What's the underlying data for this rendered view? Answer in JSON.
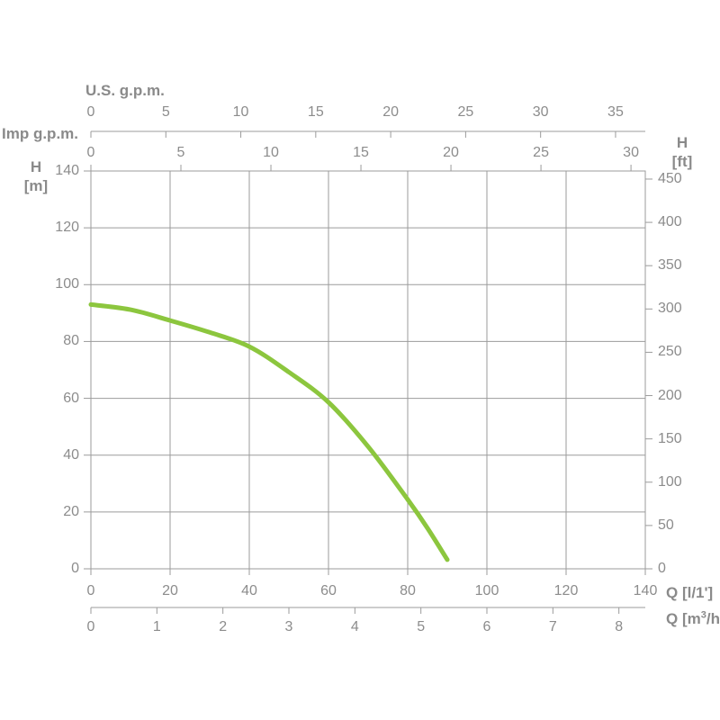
{
  "page": {
    "background": "#ffffff"
  },
  "titles": {
    "us_gpm": "U.S. g.p.m.",
    "imp_gpm": "Imp g.p.m.",
    "head_left_line1": "H",
    "head_left_line2": "[m]",
    "head_right_line1": "H",
    "head_right_line2": "[ft]",
    "q_l1": "Q [l/1']",
    "q_m3h_prefix": "Q [m",
    "q_m3h_sup": "3",
    "q_m3h_suffix": "/h]"
  },
  "chart_data": {
    "type": "line",
    "title": "",
    "description": "Pump head vs flow performance curve",
    "grid": "on",
    "axes": {
      "top_outer": {
        "title": "U.S. g.p.m.",
        "ticks": [
          0,
          5,
          10,
          15,
          20,
          25,
          30,
          35
        ]
      },
      "top_inner": {
        "title": "Imp g.p.m.",
        "ticks": [
          0,
          5,
          10,
          15,
          20,
          25,
          30
        ]
      },
      "left": {
        "title": "H [m]",
        "ticks": [
          0,
          20,
          40,
          60,
          80,
          100,
          120,
          140
        ],
        "range": [
          0,
          140
        ]
      },
      "right": {
        "title": "H [ft]",
        "ticks": [
          0,
          50,
          100,
          150,
          200,
          250,
          300,
          350,
          400,
          450
        ],
        "range": [
          0,
          459
        ]
      },
      "bottom_inner": {
        "title": "Q [l/1']",
        "ticks": [
          0,
          20,
          40,
          60,
          80,
          100,
          120,
          140
        ],
        "range": [
          0,
          140
        ]
      },
      "bottom_outer": {
        "title": "Q [m3/h]",
        "ticks": [
          0,
          1,
          2,
          3,
          4,
          5,
          6,
          7,
          8
        ]
      }
    },
    "series": [
      {
        "name": "pump-head-curve",
        "color": "#8CC63E",
        "x_unit": "l/1'",
        "y_unit": "m",
        "points": [
          [
            0,
            93.0
          ],
          [
            10,
            91.2
          ],
          [
            20,
            87.4
          ],
          [
            30,
            83.2
          ],
          [
            40,
            78.2
          ],
          [
            50,
            69.2
          ],
          [
            60,
            58.6
          ],
          [
            70,
            43.0
          ],
          [
            80,
            24.4
          ],
          [
            85,
            14.3
          ],
          [
            90,
            3.2
          ]
        ]
      }
    ],
    "colors": {
      "axis": "#9b9b9b",
      "text": "#8c8c8c",
      "curve": "#8CC63E"
    }
  }
}
